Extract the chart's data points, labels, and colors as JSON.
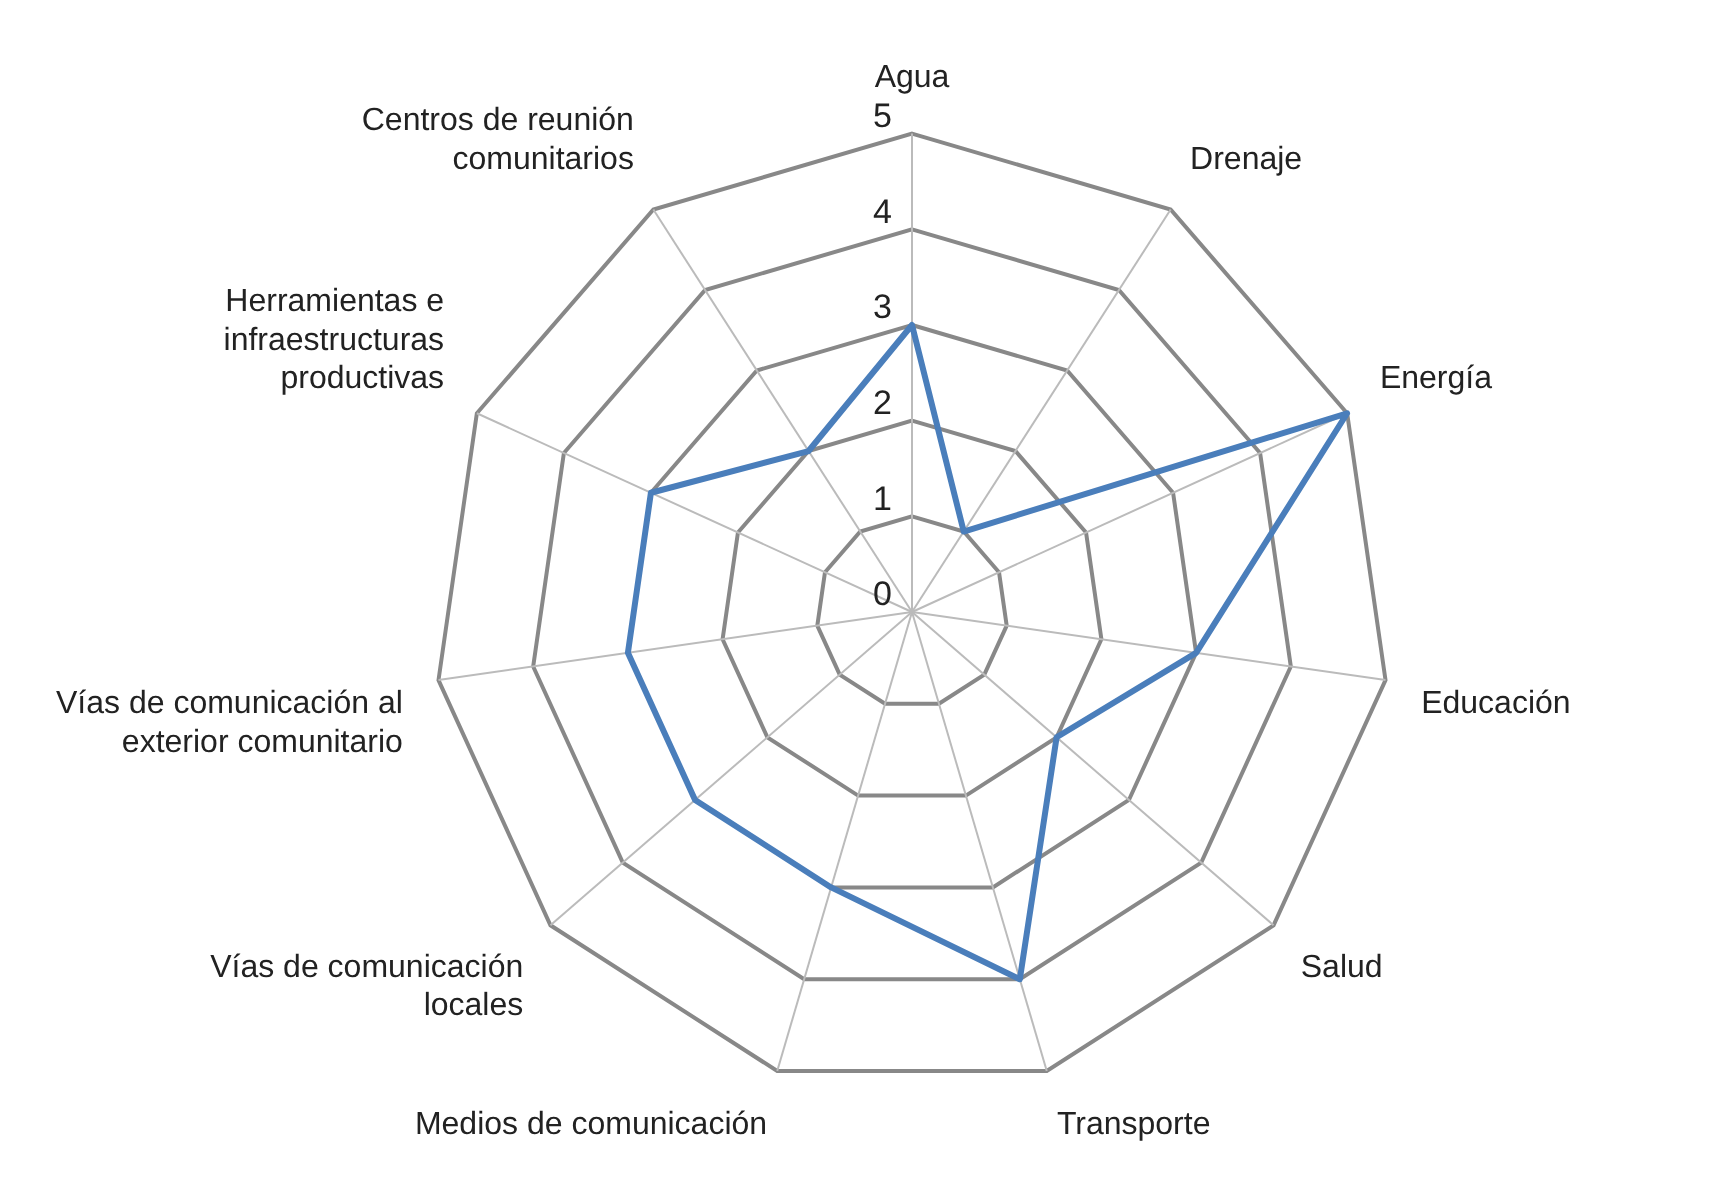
{
  "chart_data": {
    "type": "radar",
    "categories": [
      "Agua",
      "Drenaje",
      "Energía",
      "Educación",
      "Salud",
      "Transporte",
      "Medios de comunicación",
      "Vías de comunicación locales",
      "Vías de comunicación al exterior comunitario",
      "Herramientas e infraestructuras productivas",
      "Centros de reunión comunitarios"
    ],
    "series": [
      {
        "color": "#4a7ebb",
        "values": [
          3,
          1,
          5,
          3,
          2,
          4,
          3,
          3,
          3,
          3,
          2
        ]
      }
    ],
    "ylim": [
      0,
      5
    ],
    "yticks": [
      0,
      1,
      2,
      3,
      4,
      5
    ],
    "grid": true,
    "legend": false,
    "marker": "none",
    "line_style": "solid"
  }
}
